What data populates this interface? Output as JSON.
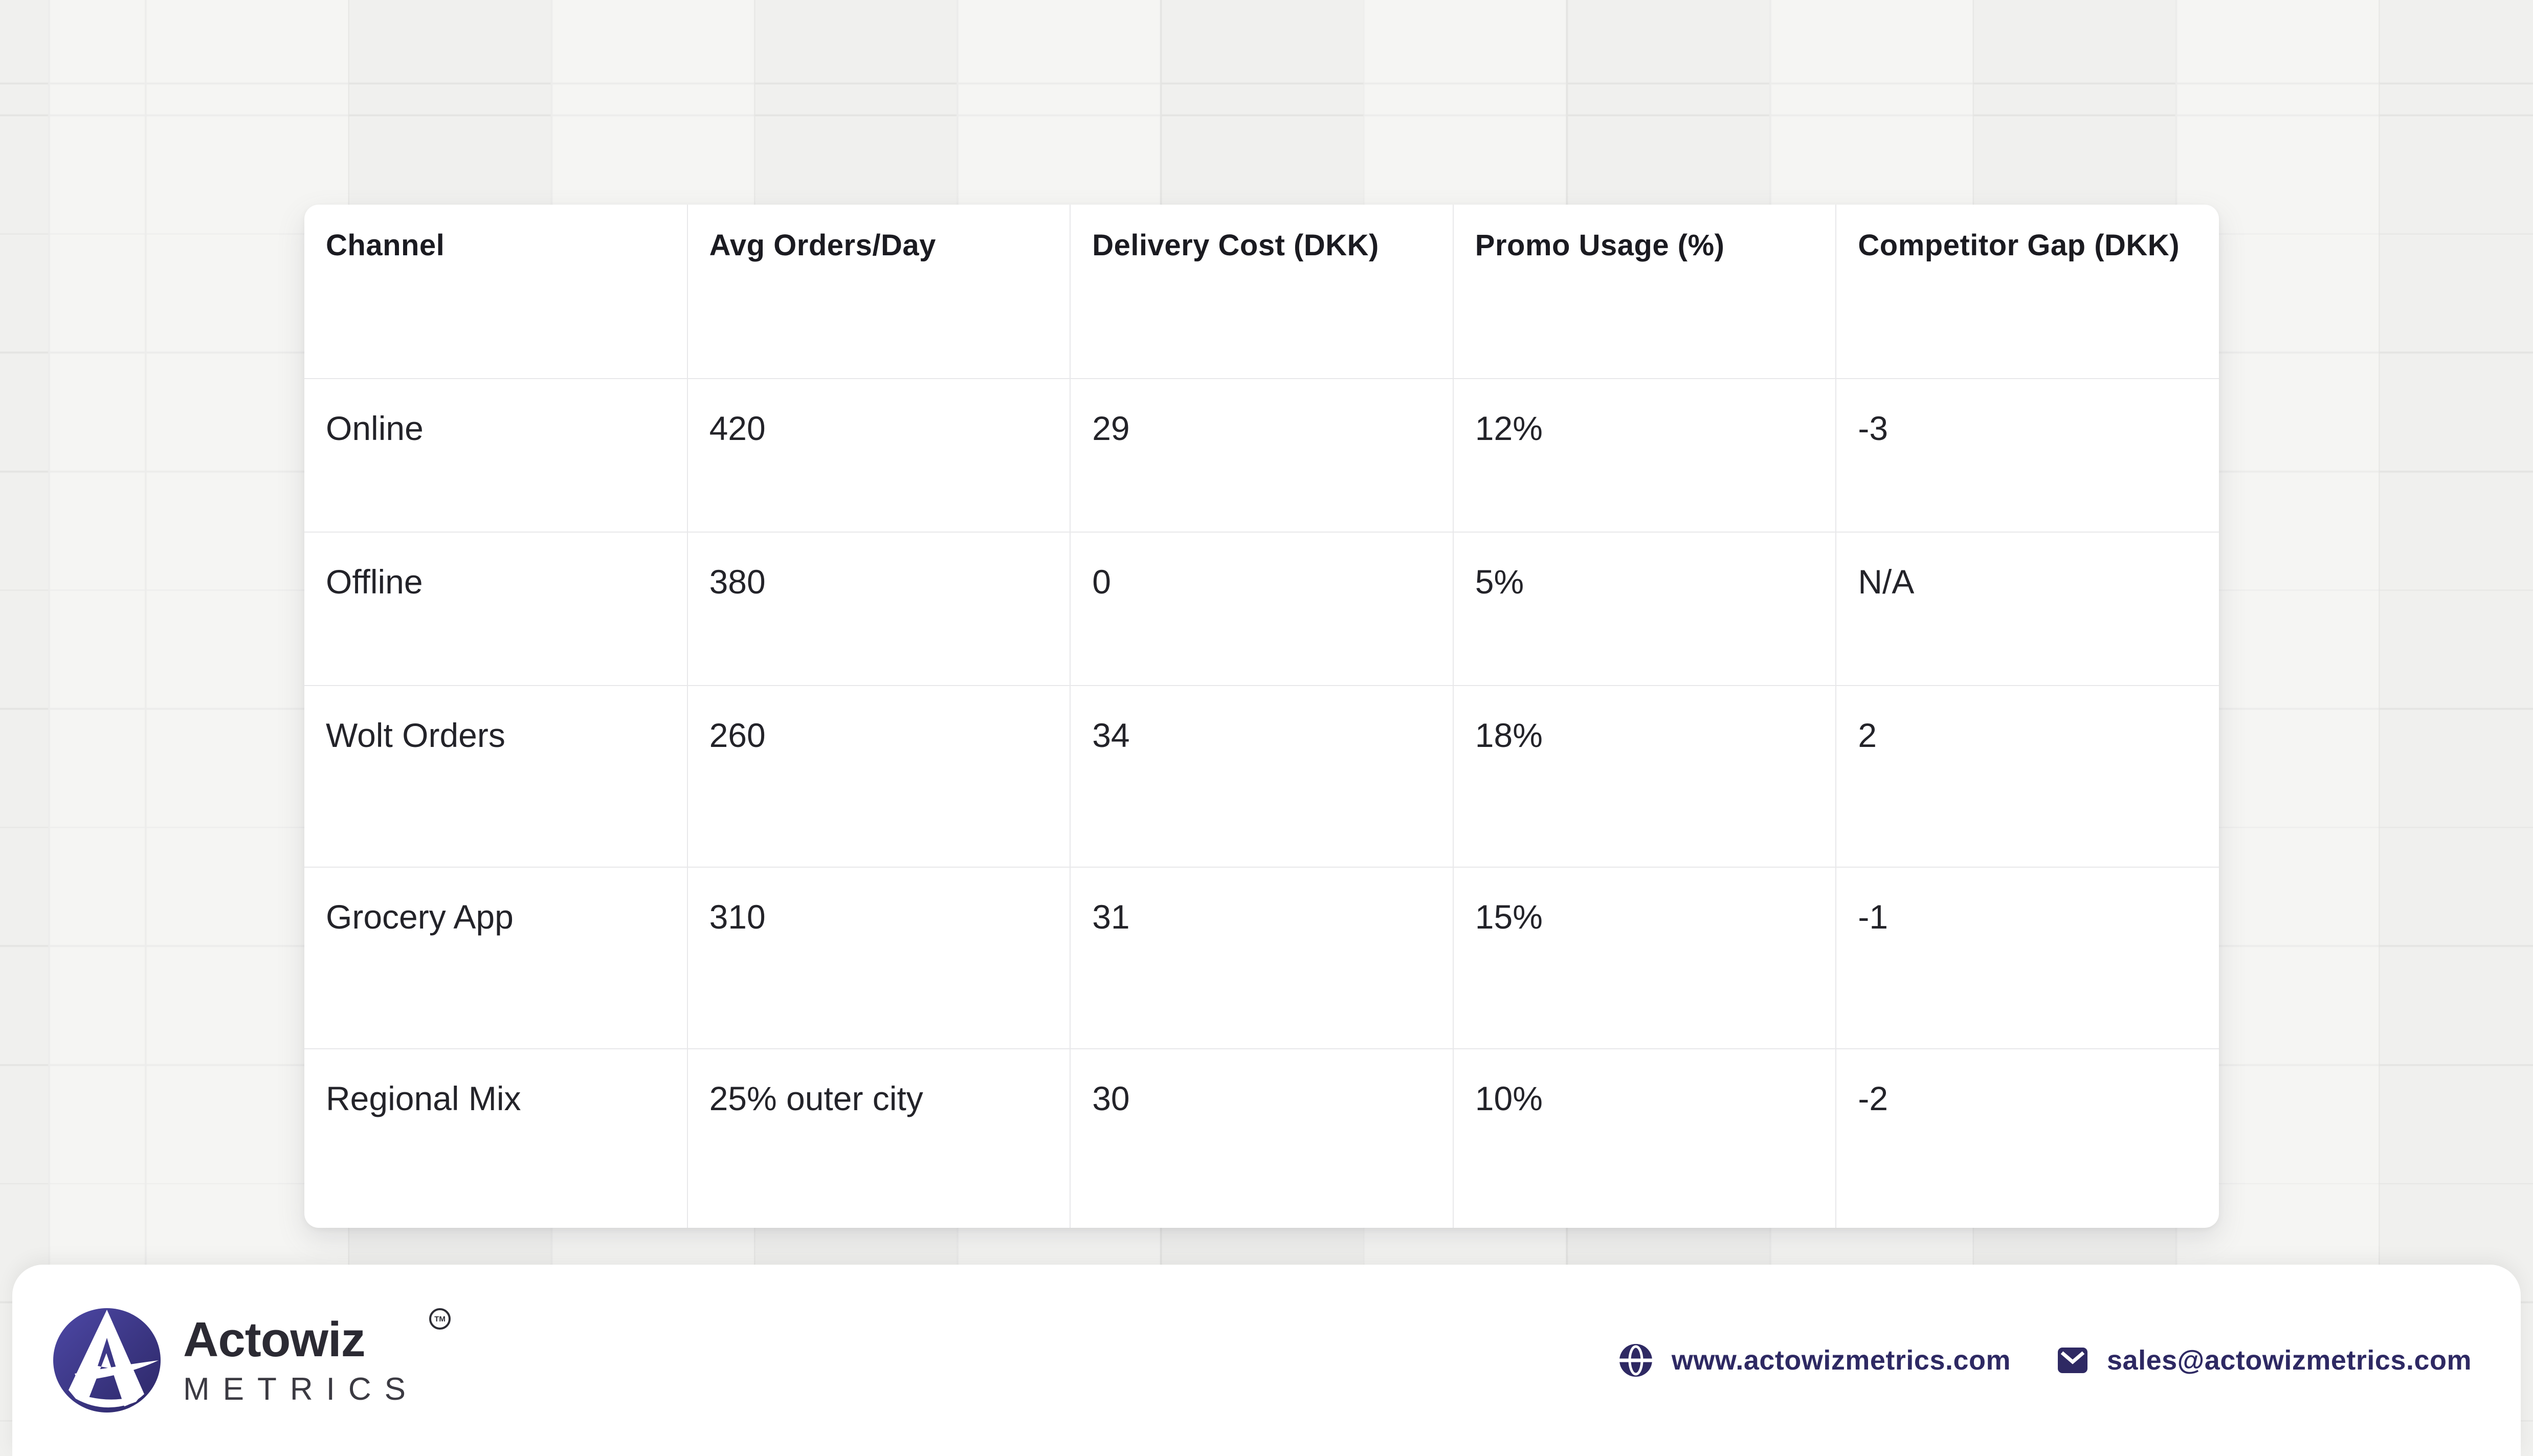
{
  "chart_data": {
    "type": "table",
    "columns": [
      "Channel",
      "Avg Orders/Day",
      "Delivery Cost (DKK)",
      "Promo Usage (%)",
      "Competitor Gap (DKK)"
    ],
    "rows": [
      [
        "Online",
        "420",
        "29",
        "12%",
        "-3"
      ],
      [
        "Offline",
        "380",
        "0",
        "5%",
        "N/A"
      ],
      [
        "Wolt Orders",
        "260",
        "34",
        "18%",
        "2"
      ],
      [
        "Grocery App",
        "310",
        "31",
        "15%",
        "-1"
      ],
      [
        "Regional Mix",
        "25% outer city",
        "30",
        "10%",
        "-2"
      ]
    ],
    "title": "",
    "legend_position": "none",
    "grid": "cell-borders"
  },
  "table": {
    "columns": [
      "Channel",
      "Avg Orders/Day",
      "Delivery Cost (DKK)",
      "Promo Usage (%)",
      "Competitor Gap (DKK)"
    ],
    "rows": [
      [
        "Online",
        "420",
        "29",
        "12%",
        "-3"
      ],
      [
        "Offline",
        "380",
        "0",
        "5%",
        "N/A"
      ],
      [
        "Wolt Orders",
        "260",
        "34",
        "18%",
        "2"
      ],
      [
        "Grocery App",
        "310",
        "31",
        "15%",
        "-1"
      ],
      [
        "Regional Mix",
        "25% outer city",
        "30",
        "10%",
        "-2"
      ]
    ]
  },
  "footer": {
    "brand_name": "Actowiz",
    "brand_trademark": "TM",
    "brand_sub": "METRICS",
    "website": "www.actowizmetrics.com",
    "email": "sales@actowizmetrics.com"
  },
  "icons": {
    "globe": "globe-icon",
    "mail": "mail-icon",
    "logo": "actowiz-a-logo"
  },
  "colors": {
    "page_background": "#f0f0ee",
    "grid_line": "#e4e4e2",
    "card_background": "#ffffff",
    "cell_border": "#e8e8ea",
    "header_text": "#1b1b21",
    "body_text": "#232329",
    "brand_indigo": "#2e2963",
    "logo_gradient_start": "#4d48a6",
    "logo_gradient_end": "#2c2766",
    "brand_name_text": "#2b2a33",
    "brand_sub_text": "#3b3a42"
  }
}
